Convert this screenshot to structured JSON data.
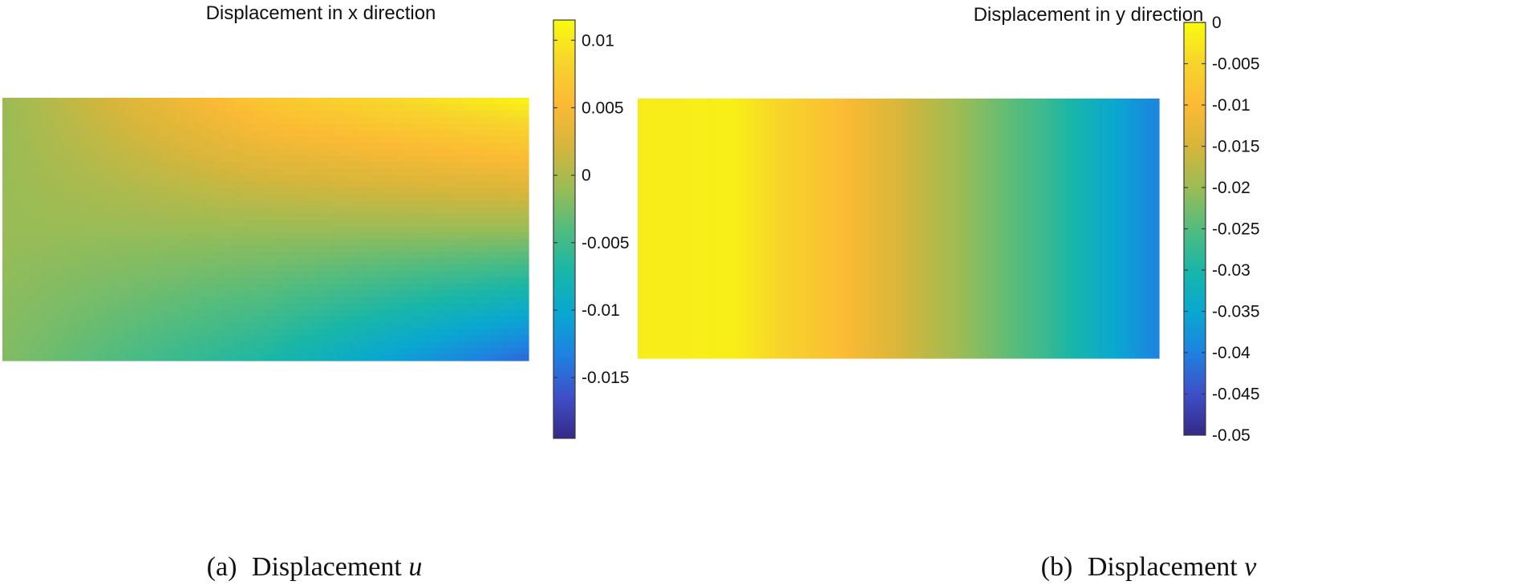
{
  "colors": {
    "parula_stops": [
      "#352a87",
      "#3e4fc8",
      "#1e82e0",
      "#09a8d1",
      "#19b6a7",
      "#52bc7e",
      "#9bbc55",
      "#d6b63b",
      "#fbba34",
      "#f7d42b",
      "#f9fb0e"
    ],
    "frame": "#3a3a3a",
    "text": "#111111"
  },
  "chart_data": [
    {
      "type": "heatmap",
      "title": "Displacement in x direction",
      "caption": {
        "label": "(a)",
        "text": "Displacement ",
        "symbol": "u"
      },
      "colorbar": {
        "range": [
          -0.0195,
          0.0115
        ],
        "ticks": [
          0.01,
          0.005,
          0,
          -0.005,
          -0.01,
          -0.015
        ],
        "tick_labels": [
          "0.01",
          "0.005",
          "0",
          "-0.005",
          "-0.01",
          "-0.015"
        ]
      },
      "field": {
        "description_values": "u(x,y) over the rectangular domain; left edge near 0, top-right about 0.011, bottom-right about -0.015",
        "samples": {
          "top_left": -0.001,
          "top_mid": 0.007,
          "top_right": 0.011,
          "mid_left": -0.001,
          "mid_mid": -0.001,
          "mid_right": -0.001,
          "bottom_left": -0.002,
          "bottom_mid": -0.007,
          "bottom_right": -0.015
        }
      }
    },
    {
      "type": "heatmap",
      "title": "Displacement in y direction",
      "caption": {
        "label": "(b)",
        "text": "Displacement ",
        "symbol": "v"
      },
      "colorbar": {
        "range": [
          -0.05,
          0.0
        ],
        "ticks": [
          0,
          -0.005,
          -0.01,
          -0.015,
          -0.02,
          -0.025,
          -0.03,
          -0.035,
          -0.04,
          -0.045,
          -0.05
        ],
        "tick_labels": [
          "0",
          "-0.005",
          "-0.01",
          "-0.015",
          "-0.02",
          "-0.025",
          "-0.03",
          "-0.035",
          "-0.04",
          "-0.045",
          "-0.05"
        ]
      },
      "field": {
        "profile_x": [
          0.0,
          0.18,
          0.38,
          0.55,
          0.78,
          1.0
        ],
        "profile_v": [
          -0.002,
          -0.0015,
          -0.009,
          -0.017,
          -0.027,
          -0.04
        ]
      }
    }
  ]
}
